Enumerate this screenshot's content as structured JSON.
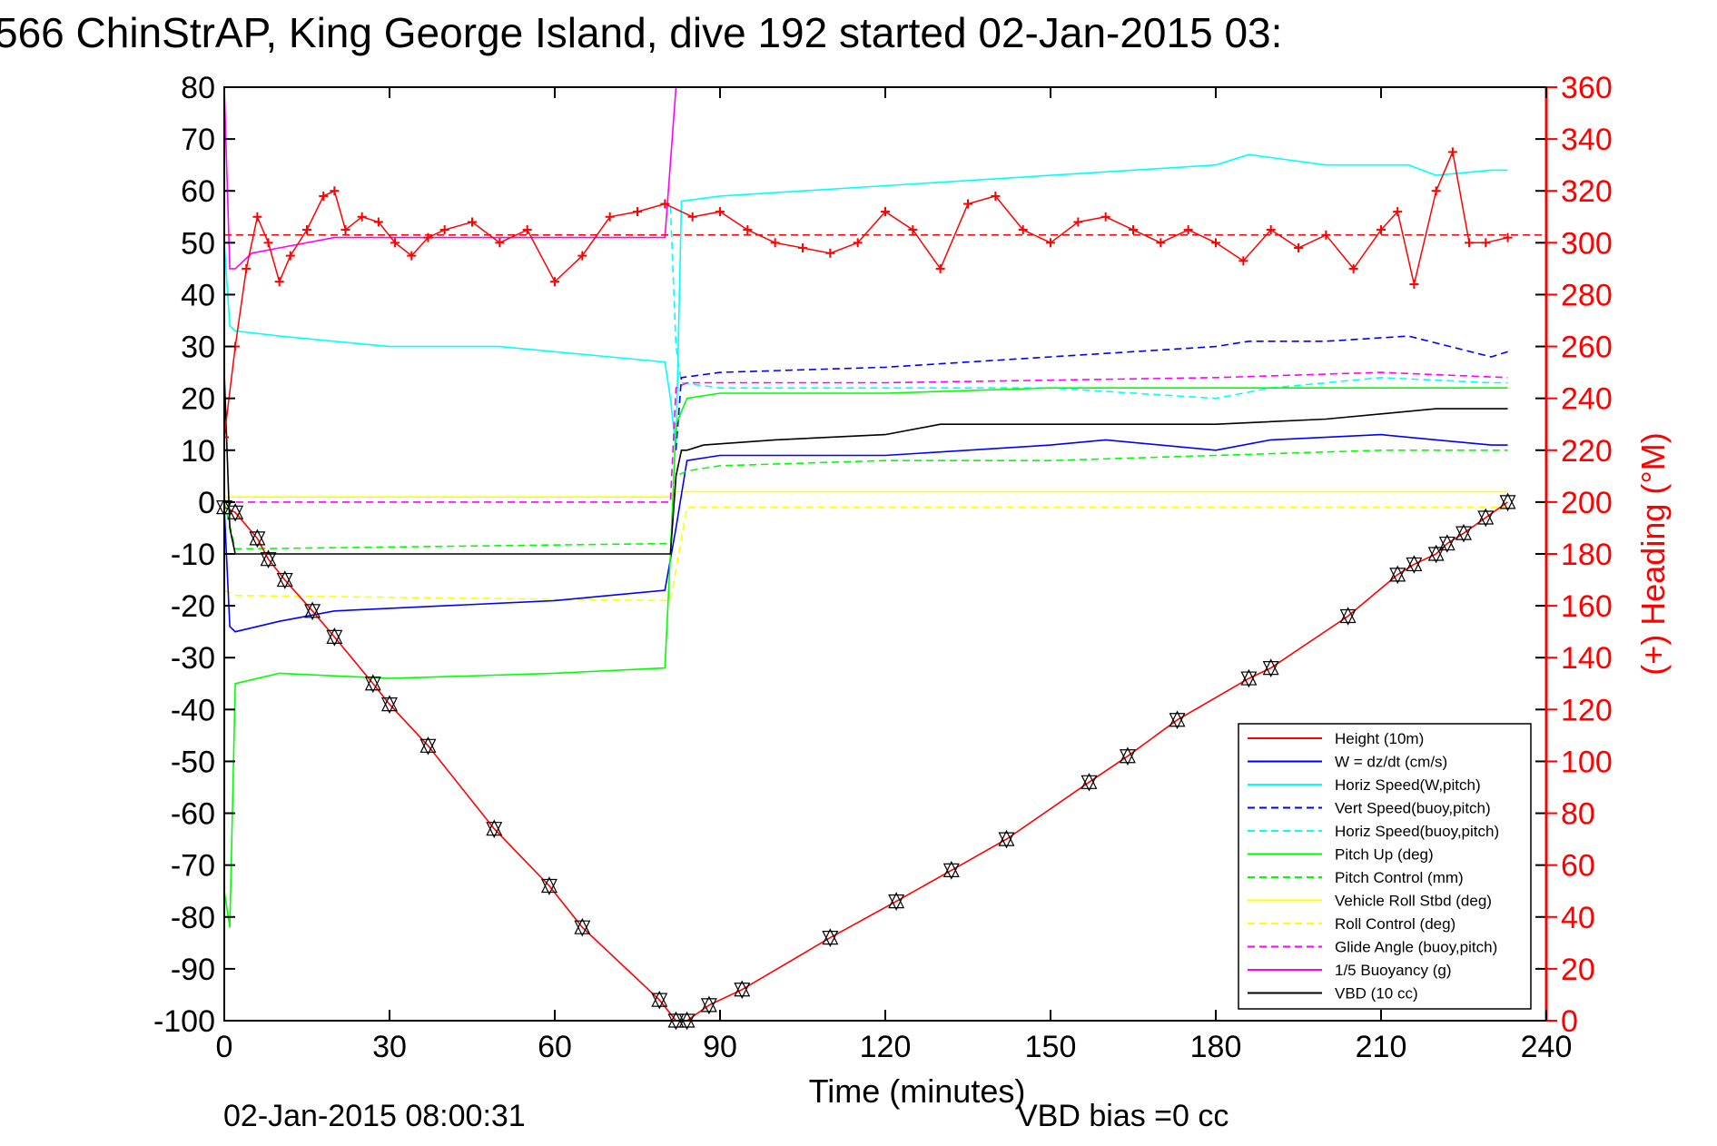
{
  "chart_data": {
    "type": "line",
    "title": "566 ChinStrAP, King George Island, dive 192 started 02-Jan-2015 03:",
    "xlabel": "Time (minutes)",
    "ylabel_right": "(+) Heading (°M)",
    "xlim": [
      0,
      240
    ],
    "ylim": [
      -100,
      80
    ],
    "ylim_right": [
      0,
      360
    ],
    "x_ticks": [
      0,
      30,
      60,
      90,
      120,
      150,
      180,
      210,
      240
    ],
    "y_ticks": [
      80,
      70,
      60,
      50,
      40,
      30,
      20,
      10,
      0,
      -10,
      -20,
      -30,
      -40,
      -50,
      -60,
      -70,
      -80,
      -90,
      -100
    ],
    "y_ticks_right": [
      360,
      340,
      320,
      300,
      280,
      260,
      240,
      220,
      200,
      180,
      160,
      140,
      120,
      100,
      80,
      60,
      40,
      20,
      0
    ],
    "footer_left": "02-Jan-2015 08:00:31",
    "footer_right": "VBD bias =0 cc",
    "legend_position": "lower-right",
    "series": [
      {
        "name": "Height (10m)",
        "color": "#ff0000",
        "style": "solid",
        "x": [
          0,
          2,
          6,
          8,
          11,
          16,
          20,
          27,
          30,
          37,
          49,
          59,
          65,
          79,
          82,
          84,
          88,
          94,
          110,
          122,
          132,
          142,
          157,
          164,
          173,
          186,
          190,
          204,
          213,
          216,
          220,
          222,
          225,
          229,
          233
        ],
        "y": [
          -1,
          -2,
          -7,
          -11,
          -15,
          -21,
          -26,
          -35,
          -39,
          -47,
          -63,
          -74,
          -82,
          -96,
          -100,
          -100,
          -97,
          -94,
          -84,
          -77,
          -71,
          -65,
          -54,
          -49,
          -42,
          -34,
          -32,
          -22,
          -14,
          -12,
          -10,
          -8,
          -6,
          -3,
          0
        ]
      },
      {
        "name": "W = dz/dt (cm/s)",
        "color": "#0000ff",
        "style": "solid",
        "x": [
          0,
          1,
          2,
          10,
          20,
          40,
          60,
          70,
          80,
          82,
          84,
          90,
          120,
          150,
          160,
          180,
          190,
          210,
          220,
          230,
          233
        ],
        "y": [
          -1,
          -24,
          -25,
          -23,
          -21,
          -20,
          -19,
          -18,
          -17,
          -5,
          8,
          9,
          9,
          11,
          12,
          10,
          12,
          13,
          12,
          11,
          11
        ]
      },
      {
        "name": "Horiz Speed(W,pitch)",
        "color": "#00ffff",
        "style": "solid",
        "x": [
          0,
          1,
          2,
          10,
          30,
          50,
          70,
          80,
          81,
          82,
          83,
          90,
          120,
          150,
          180,
          186,
          200,
          215,
          220,
          230,
          233
        ],
        "y": [
          50,
          34,
          33,
          32,
          30,
          30,
          28,
          27,
          20,
          10,
          58,
          59,
          61,
          63,
          65,
          67,
          65,
          65,
          63,
          64,
          64
        ]
      },
      {
        "name": "Vert Speed(buoy,pitch)",
        "color": "#0000ff",
        "style": "dashed",
        "x": [
          82,
          83,
          90,
          120,
          150,
          180,
          186,
          200,
          215,
          230,
          233
        ],
        "y": [
          10,
          24,
          25,
          26,
          28,
          30,
          31,
          31,
          32,
          28,
          29
        ]
      },
      {
        "name": "Horiz Speed(buoy,pitch)",
        "color": "#00ffff",
        "style": "dashed",
        "x": [
          81,
          82,
          83,
          90,
          120,
          150,
          180,
          190,
          210,
          230,
          233
        ],
        "y": [
          57,
          30,
          23,
          22,
          22,
          22,
          20,
          22,
          24,
          23,
          23
        ]
      },
      {
        "name": "Pitch Up (deg)",
        "color": "#00ff00",
        "style": "solid",
        "x": [
          0,
          1,
          2,
          10,
          30,
          60,
          80,
          81,
          82,
          84,
          90,
          120,
          150,
          180,
          210,
          233
        ],
        "y": [
          -75,
          -82,
          -35,
          -33,
          -34,
          -33,
          -32,
          -10,
          15,
          20,
          21,
          21,
          22,
          22,
          22,
          22
        ]
      },
      {
        "name": "Pitch Control (mm)",
        "color": "#00ff00",
        "style": "dashed",
        "x": [
          0,
          2,
          5,
          80,
          81,
          82,
          84,
          90,
          120,
          150,
          180,
          210,
          233
        ],
        "y": [
          0,
          -9,
          -9,
          -8,
          -8,
          5,
          6,
          7,
          8,
          8,
          9,
          10,
          10
        ]
      },
      {
        "name": "Vehicle Roll Stbd (deg)",
        "color": "#ffff00",
        "style": "solid",
        "x": [
          0,
          2,
          10,
          30,
          60,
          80,
          81,
          82,
          84,
          120,
          180,
          210,
          233
        ],
        "y": [
          1,
          1,
          1,
          1,
          1,
          1,
          1,
          2,
          2,
          2,
          2,
          2,
          2
        ]
      },
      {
        "name": "Roll Control (deg)",
        "color": "#ffff00",
        "style": "dashed",
        "x": [
          0,
          2,
          80,
          81,
          84,
          233
        ],
        "y": [
          -17,
          -18,
          -19,
          -19,
          -1,
          -1
        ]
      },
      {
        "name": "Glide Angle (buoy,pitch)",
        "color": "#ff00ff",
        "style": "dashed",
        "x": [
          0,
          80,
          81,
          82,
          84,
          120,
          180,
          210,
          233
        ],
        "y": [
          0,
          0,
          0,
          22,
          23,
          23,
          24,
          25,
          24
        ]
      },
      {
        "name": "1/5 Buoyancy (g)",
        "color": "#ff00ff",
        "style": "solid",
        "x": [
          0,
          1,
          2,
          5,
          10,
          20,
          40,
          60,
          80,
          82
        ],
        "y": [
          80,
          45,
          45,
          48,
          49,
          51,
          51,
          51,
          51,
          80
        ]
      },
      {
        "name": "VBD (10 cc)",
        "color": "#000000",
        "style": "solid",
        "x": [
          0,
          1,
          2,
          80,
          81,
          82,
          83,
          84,
          87,
          100,
          120,
          130,
          150,
          180,
          200,
          220,
          233
        ],
        "y": [
          25,
          -5,
          -10,
          -10,
          -10,
          5,
          10,
          10,
          11,
          12,
          13,
          15,
          15,
          15,
          16,
          18,
          18
        ]
      }
    ],
    "heading": {
      "name": "Heading",
      "color": "#ff0000",
      "marker": "+",
      "x": [
        0,
        2,
        4,
        6,
        8,
        10,
        12,
        15,
        18,
        20,
        22,
        25,
        28,
        31,
        34,
        37,
        40,
        45,
        50,
        55,
        60,
        65,
        70,
        75,
        80,
        85,
        90,
        95,
        100,
        105,
        110,
        115,
        120,
        125,
        130,
        135,
        140,
        145,
        150,
        155,
        160,
        165,
        170,
        175,
        180,
        185,
        190,
        195,
        200,
        205,
        210,
        213,
        216,
        220,
        223,
        226,
        229,
        233
      ],
      "y": [
        225,
        260,
        290,
        310,
        300,
        285,
        295,
        305,
        318,
        320,
        305,
        310,
        308,
        300,
        295,
        302,
        305,
        308,
        300,
        305,
        285,
        295,
        310,
        312,
        315,
        310,
        312,
        305,
        300,
        298,
        296,
        300,
        312,
        305,
        290,
        315,
        318,
        305,
        300,
        308,
        310,
        305,
        300,
        305,
        300,
        293,
        305,
        298,
        303,
        290,
        305,
        312,
        284,
        320,
        335,
        300,
        300,
        302
      ],
      "mean": 303
    }
  },
  "legend": [
    {
      "label": "Height (10m)",
      "color": "#ff0000",
      "dash": false
    },
    {
      "label": "W = dz/dt (cm/s)",
      "color": "#0000ff",
      "dash": false
    },
    {
      "label": "Horiz Speed(W,pitch)",
      "color": "#00ffff",
      "dash": false
    },
    {
      "label": "Vert Speed(buoy,pitch)",
      "color": "#0000ff",
      "dash": true
    },
    {
      "label": "Horiz Speed(buoy,pitch)",
      "color": "#00ffff",
      "dash": true
    },
    {
      "label": "Pitch Up (deg)",
      "color": "#00ff00",
      "dash": false
    },
    {
      "label": "Pitch Control (mm)",
      "color": "#00ff00",
      "dash": true
    },
    {
      "label": "Vehicle Roll Stbd (deg)",
      "color": "#ffff00",
      "dash": false
    },
    {
      "label": "Roll Control (deg)",
      "color": "#ffff00",
      "dash": true
    },
    {
      "label": "Glide Angle (buoy,pitch)",
      "color": "#ff00ff",
      "dash": true
    },
    {
      "label": "1/5 Buoyancy (g)",
      "color": "#ff00ff",
      "dash": false
    },
    {
      "label": "VBD (10 cc)",
      "color": "#000000",
      "dash": false
    }
  ]
}
